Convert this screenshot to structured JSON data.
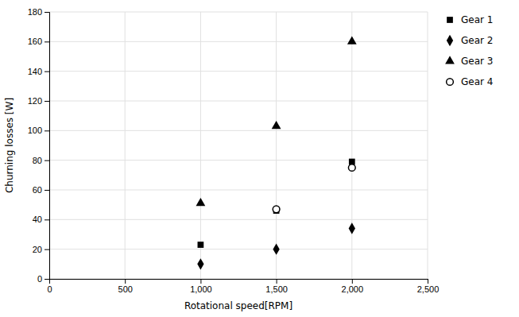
{
  "chart_data": {
    "type": "scatter",
    "xlabel": "Rotational speed[RPM]",
    "ylabel": "Churning losses [W]",
    "series": [
      {
        "name": "Gear 1",
        "color": "#000000",
        "marker": "square",
        "x": [
          1000,
          1500,
          2000
        ],
        "values": [
          23,
          46,
          79
        ]
      },
      {
        "name": "Gear 2",
        "color": "#000000",
        "marker": "diamond",
        "x": [
          1000,
          1500,
          2000
        ],
        "values": [
          10,
          20,
          34
        ]
      },
      {
        "name": "Gear 3",
        "color": "#000000",
        "marker": "triangle-up",
        "x": [
          1000,
          1500,
          2000
        ],
        "values": [
          51,
          103,
          160
        ]
      },
      {
        "name": "Gear 4",
        "color": "#000000",
        "marker": "open-circle",
        "x": [
          1500,
          2000
        ],
        "values": [
          47,
          75
        ]
      }
    ],
    "xlim": [
      0,
      2500
    ],
    "ylim": [
      0,
      180
    ],
    "xticks": [
      0,
      500,
      {
        "value": 1000,
        "label": "1,000"
      },
      {
        "value": 1500,
        "label": "1,500"
      },
      {
        "value": 2000,
        "label": "2,000"
      },
      {
        "value": 2500,
        "label": "2,500"
      }
    ],
    "yticks": [
      0,
      20,
      40,
      60,
      80,
      100,
      120,
      140,
      160,
      180
    ],
    "grid": true,
    "legend": "right"
  }
}
